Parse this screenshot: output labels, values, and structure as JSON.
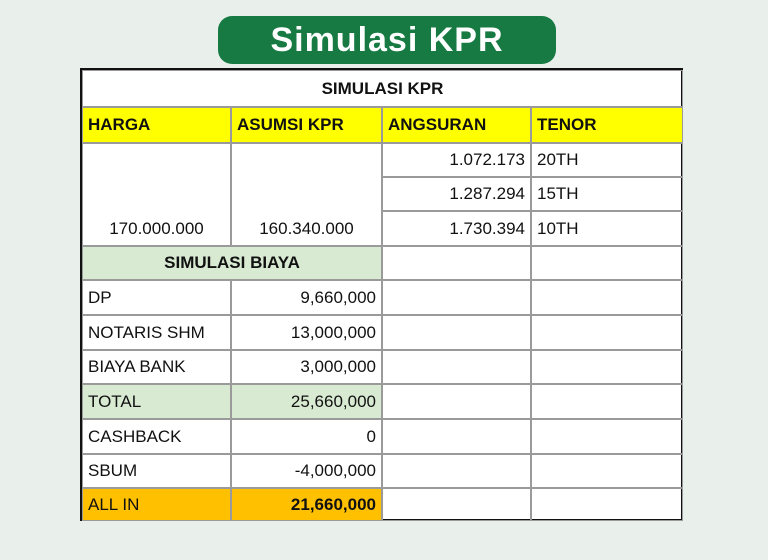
{
  "title": "Simulasi KPR",
  "table": {
    "title": "SIMULASI KPR",
    "headers": [
      "HARGA",
      "ASUMSI KPR",
      "ANGSURAN",
      "TENOR"
    ],
    "harga": "170.000.000",
    "asumsi_kpr": "160.340.000",
    "angsuran": [
      {
        "amount": "1.072.173",
        "tenor": "20TH"
      },
      {
        "amount": "1.287.294",
        "tenor": "15TH"
      },
      {
        "amount": "1.730.394",
        "tenor": "10TH"
      }
    ],
    "biaya_title": "SIMULASI BIAYA",
    "biaya": [
      [
        "DP",
        "9,660,000"
      ],
      [
        "NOTARIS SHM",
        "13,000,000"
      ],
      [
        "BIAYA BANK",
        "3,000,000"
      ],
      [
        "TOTAL",
        "25,660,000"
      ],
      [
        "CASHBACK",
        "0"
      ],
      [
        "SBUM",
        "-4,000,000"
      ],
      [
        "ALL IN",
        "21,660,000"
      ]
    ]
  }
}
